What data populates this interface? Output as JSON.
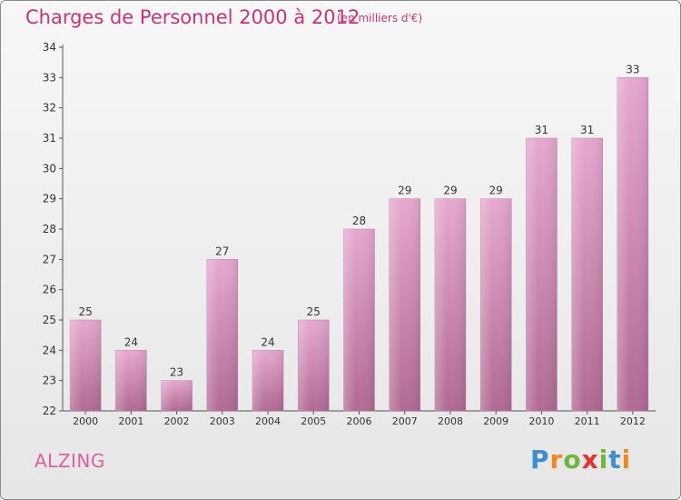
{
  "chart_data": {
    "type": "bar",
    "title": "Charges de Personnel 2000 à 2012",
    "subtitle": "(en milliers d'€)",
    "categories": [
      "2000",
      "2001",
      "2002",
      "2003",
      "2004",
      "2005",
      "2006",
      "2007",
      "2008",
      "2009",
      "2010",
      "2011",
      "2012"
    ],
    "values": [
      25,
      24,
      23,
      27,
      24,
      25,
      28,
      29,
      29,
      29,
      31,
      31,
      33
    ],
    "ylim": [
      22,
      34
    ],
    "yticks": [
      22,
      23,
      24,
      25,
      26,
      27,
      28,
      29,
      30,
      31,
      32,
      33,
      34
    ],
    "grid": false,
    "bar_color": "#dd99c2"
  },
  "commune": "ALZING",
  "logo": {
    "letters": [
      "P",
      "r",
      "o",
      "x",
      "i",
      "t",
      "i"
    ],
    "colors": [
      "#3d8fd0",
      "#f08a1c",
      "#6cb83a",
      "#e8312f",
      "#6cb83a",
      "#3d8fd0",
      "#f08a1c"
    ]
  }
}
